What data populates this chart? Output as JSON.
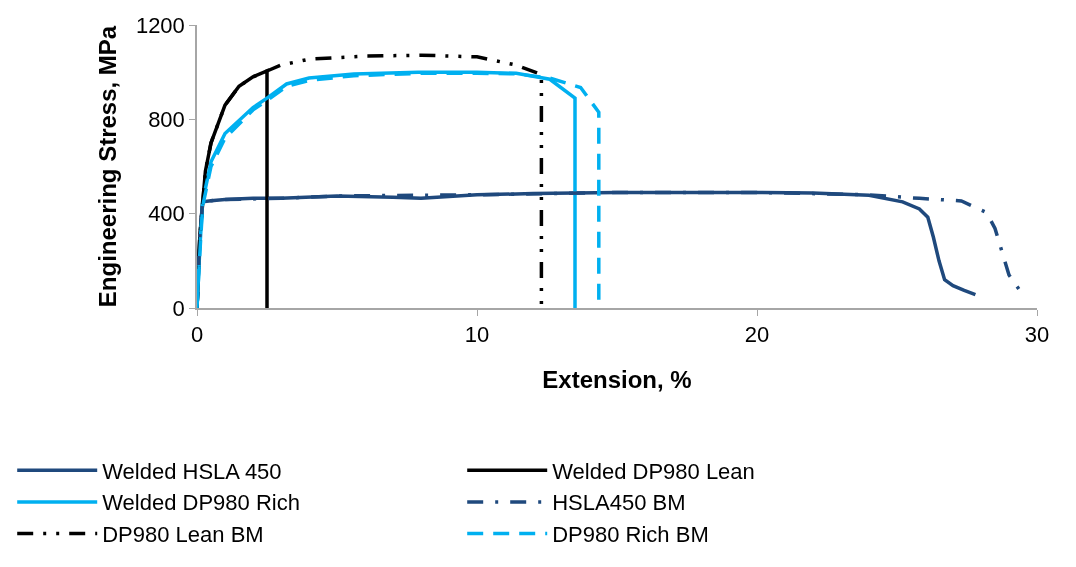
{
  "chart_data": {
    "type": "line",
    "xlabel": "Extension, %",
    "ylabel": "Engineering Stress, MPa",
    "xlim": [
      0,
      30
    ],
    "xticks": [
      0,
      10,
      20,
      30
    ],
    "ylim": [
      0,
      1200
    ],
    "yticks": [
      0,
      400,
      800,
      1200
    ],
    "grid": false,
    "legend": "bottom",
    "marker": "none",
    "series": [
      {
        "name": "Welded HSLA 450",
        "color": "#1f497d",
        "line_style": "solid",
        "x": [
          0,
          0.1,
          0.2,
          0.5,
          1,
          2,
          3,
          5,
          7,
          8,
          10,
          12,
          15,
          18,
          20,
          22,
          24,
          25.2,
          25.8,
          26.1,
          26.3,
          26.5,
          26.7,
          27.0,
          27.4,
          27.8
        ],
        "values": [
          0,
          300,
          450,
          455,
          460,
          465,
          465,
          475,
          470,
          465,
          480,
          485,
          490,
          490,
          490,
          488,
          478,
          450,
          420,
          385,
          300,
          200,
          120,
          95,
          75,
          57
        ]
      },
      {
        "name": "Welded DP980 Lean",
        "color": "#000000",
        "line_style": "solid",
        "x": [
          0,
          0.1,
          0.3,
          0.5,
          1,
          1.5,
          2,
          2.5,
          2.5
        ],
        "values": [
          0,
          300,
          580,
          700,
          860,
          940,
          980,
          1005,
          0
        ]
      },
      {
        "name": "Welded DP980 Rich",
        "color": "#00b0f0",
        "line_style": "solid",
        "x": [
          0,
          0.1,
          0.2,
          0.5,
          1,
          2,
          2.5,
          3.2,
          4,
          5.6,
          7.9,
          10,
          11.4,
          12.6,
          13.5,
          13.5
        ],
        "values": [
          0,
          250,
          450,
          620,
          740,
          850,
          890,
          950,
          975,
          992,
          1000,
          1000,
          995,
          970,
          890,
          0
        ]
      },
      {
        "name": "HSLA450 BM",
        "color": "#1f497d",
        "line_style": "dashdot",
        "x": [
          0,
          0.1,
          0.2,
          0.5,
          1,
          3,
          5,
          10,
          15,
          20,
          24,
          25.8,
          27.3,
          28.2,
          28.5,
          29.0,
          29.4
        ],
        "values": [
          0,
          300,
          450,
          455,
          460,
          465,
          475,
          480,
          490,
          490,
          480,
          465,
          454,
          405,
          337,
          140,
          72
        ]
      },
      {
        "name": "DP980 Lean BM",
        "color": "#000000",
        "line_style": "longdashdot",
        "x": [
          0,
          0.1,
          0.3,
          0.5,
          1,
          1.5,
          2,
          2.5,
          3,
          4,
          6,
          8,
          10,
          11.4,
          12.3,
          12.3
        ],
        "values": [
          0,
          300,
          580,
          700,
          860,
          940,
          980,
          1005,
          1030,
          1055,
          1068,
          1072,
          1065,
          1030,
          990,
          0
        ]
      },
      {
        "name": "DP980 Rich BM",
        "color": "#00b0f0",
        "line_style": "dashed",
        "x": [
          0,
          0.1,
          0.2,
          0.5,
          1,
          2,
          2.5,
          3.2,
          4,
          5.6,
          7.9,
          10,
          11.4,
          12.6,
          13.7,
          14.35,
          14.35
        ],
        "values": [
          0,
          230,
          430,
          600,
          720,
          840,
          880,
          940,
          965,
          985,
          995,
          995,
          993,
          975,
          935,
          830,
          0
        ]
      }
    ]
  }
}
